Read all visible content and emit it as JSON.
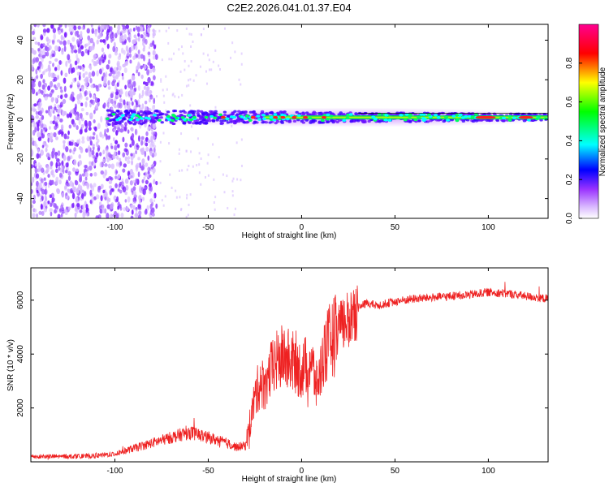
{
  "title": "C2E2.2026.041.01.37.E04",
  "chart_data": [
    {
      "type": "heatmap",
      "xlabel": "Height of straight line (km)",
      "ylabel": "Frequency (Hz)",
      "xlim": [
        -145,
        132
      ],
      "ylim": [
        -50,
        48
      ],
      "xticks": [
        -100,
        -50,
        0,
        50,
        100
      ],
      "yticks": [
        -40,
        -20,
        0,
        20,
        40
      ],
      "ridge": {
        "x_start": -104,
        "x_end": 132,
        "center_freq": 1,
        "note": "band of energy near 0 Hz, noisy broadband scatter below -80 km"
      },
      "colorbar": {
        "label": "Normalized spectral amplitude",
        "ticks": [
          0.0,
          0.2,
          0.4,
          0.6,
          0.8
        ],
        "range": [
          0,
          1
        ],
        "colors": [
          "#ffffff",
          "#9a33ff",
          "#0000ff",
          "#00ffff",
          "#00ff00",
          "#ffff00",
          "#ff0000",
          "#ff0090"
        ]
      }
    },
    {
      "type": "line",
      "xlabel": "Height of straight line (km)",
      "ylabel": "SNR (10 * v/v)",
      "xlim": [
        -145,
        132
      ],
      "ylim": [
        0,
        7200
      ],
      "xticks": [
        -100,
        -50,
        0,
        50,
        100
      ],
      "yticks": [
        2000,
        4000,
        6000
      ],
      "line_color": "#ee2222",
      "x": [
        -145,
        -130,
        -110,
        -100,
        -90,
        -80,
        -70,
        -60,
        -55,
        -50,
        -45,
        -40,
        -35,
        -30,
        -25,
        -22,
        -20,
        -15,
        -10,
        -5,
        0,
        5,
        8,
        10,
        12,
        15,
        20,
        25,
        30,
        35,
        40,
        50,
        60,
        70,
        80,
        90,
        100,
        110,
        115,
        120,
        132
      ],
      "values": [
        200,
        200,
        220,
        300,
        500,
        700,
        900,
        1100,
        1000,
        900,
        800,
        700,
        550,
        600,
        2400,
        3000,
        2800,
        3600,
        3900,
        3700,
        3400,
        3800,
        2800,
        3300,
        4100,
        4500,
        4900,
        5300,
        5700,
        5900,
        5800,
        5950,
        6050,
        6100,
        6150,
        6200,
        6300,
        6250,
        6200,
        6150,
        6050
      ]
    }
  ]
}
